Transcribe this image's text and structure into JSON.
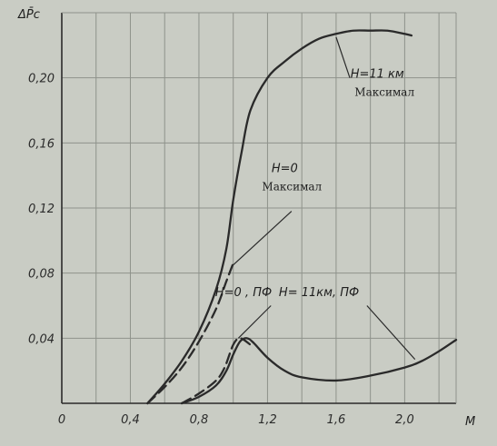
{
  "chart_data": {
    "type": "line",
    "title": "",
    "xlabel": "M",
    "ylabel": "ΔP̄c",
    "xlim": [
      0,
      2.3
    ],
    "ylim": [
      0,
      0.24
    ],
    "x_ticks": [
      "0",
      "0,4",
      "0,8",
      "1,2",
      "1,6",
      "2,0"
    ],
    "y_ticks": [
      "0,04",
      "0,08",
      "0,12",
      "0,16",
      "0,20"
    ],
    "grid": true,
    "grid_step_x": 0.2,
    "grid_step_y": 0.04,
    "legend": "none",
    "series": [
      {
        "style": "solid",
        "points": [
          [
            0.5,
            0.0
          ],
          [
            0.6,
            0.012
          ],
          [
            0.7,
            0.026
          ],
          [
            0.8,
            0.044
          ],
          [
            0.9,
            0.07
          ],
          [
            0.96,
            0.095
          ],
          [
            1.0,
            0.125
          ],
          [
            1.05,
            0.155
          ],
          [
            1.1,
            0.18
          ],
          [
            1.2,
            0.2
          ],
          [
            1.3,
            0.21
          ],
          [
            1.4,
            0.218
          ],
          [
            1.5,
            0.224
          ],
          [
            1.6,
            0.227
          ],
          [
            1.7,
            0.229
          ],
          [
            1.8,
            0.229
          ],
          [
            1.9,
            0.229
          ],
          [
            2.0,
            0.227
          ],
          [
            2.04,
            0.226
          ]
        ]
      },
      {
        "style": "dashed",
        "points": [
          [
            0.5,
            0.0
          ],
          [
            0.6,
            0.01
          ],
          [
            0.7,
            0.022
          ],
          [
            0.8,
            0.038
          ],
          [
            0.9,
            0.058
          ],
          [
            0.96,
            0.075
          ],
          [
            1.0,
            0.086
          ]
        ]
      },
      {
        "style": "solid",
        "points": [
          [
            0.7,
            0.0
          ],
          [
            0.8,
            0.004
          ],
          [
            0.9,
            0.011
          ],
          [
            0.96,
            0.02
          ],
          [
            1.0,
            0.03
          ],
          [
            1.04,
            0.038
          ],
          [
            1.08,
            0.04
          ],
          [
            1.12,
            0.037
          ],
          [
            1.2,
            0.028
          ],
          [
            1.3,
            0.02
          ],
          [
            1.4,
            0.016
          ],
          [
            1.6,
            0.014
          ],
          [
            1.8,
            0.017
          ],
          [
            2.0,
            0.022
          ],
          [
            2.1,
            0.026
          ],
          [
            2.2,
            0.032
          ],
          [
            2.3,
            0.039
          ]
        ]
      },
      {
        "style": "dashed",
        "points": [
          [
            0.7,
            0.0
          ],
          [
            0.8,
            0.006
          ],
          [
            0.9,
            0.014
          ],
          [
            0.95,
            0.022
          ],
          [
            1.0,
            0.036
          ],
          [
            1.04,
            0.04
          ],
          [
            1.1,
            0.036
          ]
        ]
      }
    ],
    "annotations": [
      {
        "text": "H=11 км",
        "line2": "Максимал",
        "x": 1.84,
        "y": 0.2,
        "arrow_to": [
          1.6,
          0.225
        ],
        "arrow_from": [
          1.68,
          0.2
        ]
      },
      {
        "text": "H=0",
        "line2": "Максимал",
        "x": 1.3,
        "y": 0.142,
        "arrow_to": [
          1.0,
          0.085
        ],
        "arrow_from": [
          1.34,
          0.118
        ]
      },
      {
        "text": "H=0 , ПФ",
        "x": 1.06,
        "y": 0.066,
        "arrow_to": [
          1.03,
          0.04
        ],
        "arrow_from": [
          1.22,
          0.06
        ]
      },
      {
        "text": "H= 11км, ПФ",
        "x": 1.5,
        "y": 0.066,
        "arrow_to": [
          2.06,
          0.027
        ],
        "arrow_from": [
          1.78,
          0.06
        ]
      }
    ]
  },
  "colors": {
    "paper": "#c9ccc4",
    "grid": "#8e928b",
    "ink": "#2a2a2a"
  }
}
